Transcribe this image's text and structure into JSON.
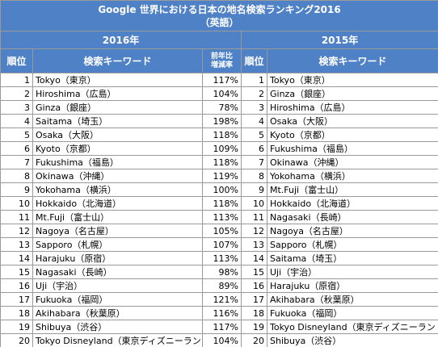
{
  "header": {
    "title": "Google 世界における日本の地名検索ランキング2016",
    "subtitle": "（英語）"
  },
  "table": {
    "years": [
      "2016年",
      "2015年"
    ],
    "columns": [
      "順位",
      "検索キーワード",
      [
        "前年比",
        "増減率"
      ],
      "順位",
      "検索キーワード"
    ],
    "rows_2016": [
      [
        1,
        "Tokyo（東京）",
        "117%"
      ],
      [
        2,
        "Hiroshima（広島）",
        "104%"
      ],
      [
        3,
        "Ginza（銀座）",
        "78%"
      ],
      [
        4,
        "Saitama（埼玉）",
        "198%"
      ],
      [
        5,
        "Osaka（大阪）",
        "118%"
      ],
      [
        6,
        "Kyoto（京都）",
        "109%"
      ],
      [
        7,
        "Fukushima（福島）",
        "118%"
      ],
      [
        8,
        "Okinawa（沖縄）",
        "119%"
      ],
      [
        9,
        "Yokohama（横浜）",
        "100%"
      ],
      [
        10,
        "Hokkaido（北海道）",
        "118%"
      ],
      [
        11,
        "Mt.Fuji（富士山）",
        "113%"
      ],
      [
        12,
        "Nagoya（名古屋）",
        "105%"
      ],
      [
        13,
        "Sapporo（札幌）",
        "107%"
      ],
      [
        14,
        "Harajuku（原宿）",
        "113%"
      ],
      [
        15,
        "Nagasaki（長崎）",
        "98%"
      ],
      [
        16,
        "Uji（宇治）",
        "89%"
      ],
      [
        17,
        "Fukuoka（福岡）",
        "121%"
      ],
      [
        18,
        "Akihabara（秋葉原）",
        "116%"
      ],
      [
        19,
        "Shibuya（渋谷）",
        "117%"
      ],
      [
        20,
        "Tokyo Disneyland（東京ディズニーランド）",
        "104%"
      ]
    ],
    "rows_2015": [
      [
        1,
        "Tokyo（東京）"
      ],
      [
        2,
        "Ginza（銀座）"
      ],
      [
        3,
        "Hiroshima（広島）"
      ],
      [
        4,
        "Osaka（大阪）"
      ],
      [
        5,
        "Kyoto（京都）"
      ],
      [
        6,
        "Fukushima（福島）"
      ],
      [
        7,
        "Okinawa（沖縄）"
      ],
      [
        8,
        "Yokohama（横浜）"
      ],
      [
        9,
        "Mt.Fuji（富士山）"
      ],
      [
        10,
        "Hokkaido（北海道）"
      ],
      [
        11,
        "Nagasaki（長崎）"
      ],
      [
        12,
        "Nagoya（名古屋）"
      ],
      [
        13,
        "Sapporo（札幌）"
      ],
      [
        14,
        "Saitama（埼玉）"
      ],
      [
        15,
        "Uji（宇治）"
      ],
      [
        16,
        "Harajuku（原宿）"
      ],
      [
        17,
        "Akihabara（秋葉原）"
      ],
      [
        18,
        "Fukuoka（福岡）"
      ],
      [
        19,
        "Tokyo Disneyland（東京ディズニーランド）"
      ],
      [
        20,
        "Shibuya（渋谷）"
      ]
    ]
  }
}
